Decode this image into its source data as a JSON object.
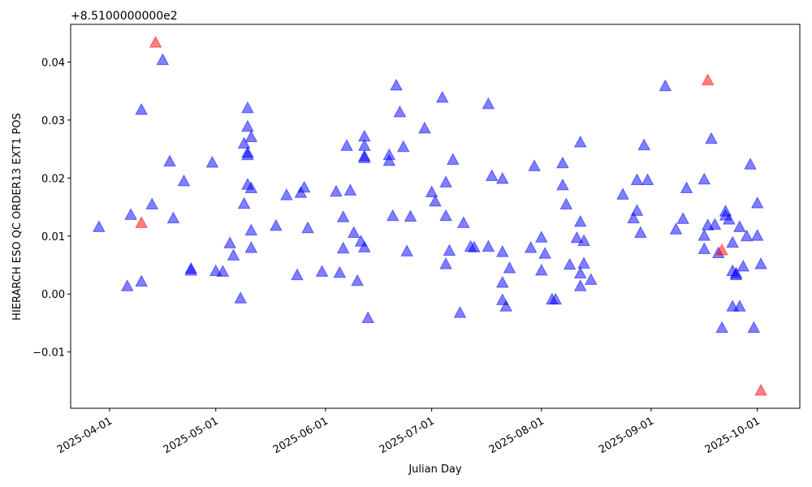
{
  "chart_data": {
    "type": "scatter",
    "xlabel": "Julian Day",
    "ylabel": "HIERARCH ESO QC ORDER13 EXT1 POS",
    "offset_label": "+8.5100000000e2",
    "xlim": [
      "2025-03-21",
      "2025-10-13"
    ],
    "ylim": [
      -0.0197,
      0.0465
    ],
    "x_ticks": [
      "2025-04-01",
      "2025-05-01",
      "2025-06-01",
      "2025-07-01",
      "2025-08-01",
      "2025-09-01",
      "2025-10-01"
    ],
    "y_ticks": [
      -0.01,
      0.0,
      0.01,
      0.02,
      0.03,
      0.04
    ],
    "y_tick_labels": [
      "−0.01",
      "0.00",
      "0.01",
      "0.02",
      "0.03",
      "0.04"
    ],
    "marker": "triangle-up",
    "colors": {
      "normal": "#0000ff",
      "outlier": "#ff0000"
    },
    "series": [
      {
        "color": "#0000ff",
        "points": [
          [
            "2025-03-29",
            0.0116
          ],
          [
            "2025-04-06",
            0.0014
          ],
          [
            "2025-04-07",
            0.0137
          ],
          [
            "2025-04-10",
            0.0318
          ],
          [
            "2025-04-10",
            0.0022
          ],
          [
            "2025-04-13",
            0.0155
          ],
          [
            "2025-04-16",
            0.0404
          ],
          [
            "2025-04-18",
            0.0229
          ],
          [
            "2025-04-19",
            0.0131
          ],
          [
            "2025-04-22",
            0.0195
          ],
          [
            "2025-04-24",
            0.0041
          ],
          [
            "2025-04-24",
            0.0044
          ],
          [
            "2025-04-30",
            0.0227
          ],
          [
            "2025-05-01",
            0.004
          ],
          [
            "2025-05-03",
            0.0039
          ],
          [
            "2025-05-05",
            0.0088
          ],
          [
            "2025-05-06",
            0.0067
          ],
          [
            "2025-05-08",
            -0.0007
          ],
          [
            "2025-05-09",
            0.0156
          ],
          [
            "2025-05-09",
            0.026
          ],
          [
            "2025-05-10",
            0.0321
          ],
          [
            "2025-05-10",
            0.0289
          ],
          [
            "2025-05-10",
            0.024
          ],
          [
            "2025-05-10",
            0.0244
          ],
          [
            "2025-05-10",
            0.0189
          ],
          [
            "2025-05-11",
            0.0271
          ],
          [
            "2025-05-11",
            0.0183
          ],
          [
            "2025-05-11",
            0.011
          ],
          [
            "2025-05-11",
            0.008
          ],
          [
            "2025-05-18",
            0.0118
          ],
          [
            "2025-05-21",
            0.0171
          ],
          [
            "2025-05-24",
            0.0033
          ],
          [
            "2025-05-25",
            0.0175
          ],
          [
            "2025-05-26",
            0.0184
          ],
          [
            "2025-05-27",
            0.0114
          ],
          [
            "2025-05-31",
            0.0039
          ],
          [
            "2025-06-04",
            0.0177
          ],
          [
            "2025-06-05",
            0.0037
          ],
          [
            "2025-06-06",
            0.0079
          ],
          [
            "2025-06-06",
            0.0133
          ],
          [
            "2025-06-07",
            0.0256
          ],
          [
            "2025-06-08",
            0.0179
          ],
          [
            "2025-06-09",
            0.0106
          ],
          [
            "2025-06-10",
            0.0023
          ],
          [
            "2025-06-11",
            0.0091
          ],
          [
            "2025-06-12",
            0.0272
          ],
          [
            "2025-06-12",
            0.0256
          ],
          [
            "2025-06-12",
            0.0238
          ],
          [
            "2025-06-12",
            0.0235
          ],
          [
            "2025-06-12",
            0.0081
          ],
          [
            "2025-06-13",
            -0.0041
          ],
          [
            "2025-06-19",
            0.024
          ],
          [
            "2025-06-19",
            0.023
          ],
          [
            "2025-06-20",
            0.0135
          ],
          [
            "2025-06-21",
            0.036
          ],
          [
            "2025-06-22",
            0.0314
          ],
          [
            "2025-06-23",
            0.0254
          ],
          [
            "2025-06-24",
            0.0074
          ],
          [
            "2025-06-25",
            0.0134
          ],
          [
            "2025-06-29",
            0.0286
          ],
          [
            "2025-07-01",
            0.0176
          ],
          [
            "2025-07-02",
            0.016
          ],
          [
            "2025-07-04",
            0.0339
          ],
          [
            "2025-07-05",
            0.0193
          ],
          [
            "2025-07-05",
            0.0135
          ],
          [
            "2025-07-05",
            0.0052
          ],
          [
            "2025-07-06",
            0.0075
          ],
          [
            "2025-07-07",
            0.0232
          ],
          [
            "2025-07-09",
            -0.0032
          ],
          [
            "2025-07-10",
            0.0123
          ],
          [
            "2025-07-12",
            0.0082
          ],
          [
            "2025-07-13",
            0.0081
          ],
          [
            "2025-07-17",
            0.0328
          ],
          [
            "2025-07-17",
            0.0082
          ],
          [
            "2025-07-18",
            0.0204
          ],
          [
            "2025-07-21",
            0.0199
          ],
          [
            "2025-07-21",
            0.0073
          ],
          [
            "2025-07-21",
            0.002
          ],
          [
            "2025-07-21",
            -0.001
          ],
          [
            "2025-07-22",
            -0.0021
          ],
          [
            "2025-07-23",
            0.0045
          ],
          [
            "2025-07-29",
            0.008
          ],
          [
            "2025-07-30",
            0.0221
          ],
          [
            "2025-08-01",
            0.0098
          ],
          [
            "2025-08-01",
            0.0041
          ],
          [
            "2025-08-02",
            0.007
          ],
          [
            "2025-08-04",
            -0.0009
          ],
          [
            "2025-08-05",
            -0.0009
          ],
          [
            "2025-08-07",
            0.0226
          ],
          [
            "2025-08-07",
            0.0188
          ],
          [
            "2025-08-08",
            0.0155
          ],
          [
            "2025-08-09",
            0.0051
          ],
          [
            "2025-08-11",
            0.0097
          ],
          [
            "2025-08-12",
            0.0262
          ],
          [
            "2025-08-12",
            0.0125
          ],
          [
            "2025-08-12",
            0.0036
          ],
          [
            "2025-08-12",
            0.0014
          ],
          [
            "2025-08-13",
            0.0053
          ],
          [
            "2025-08-13",
            0.0092
          ],
          [
            "2025-08-15",
            0.0025
          ],
          [
            "2025-08-24",
            0.0172
          ],
          [
            "2025-08-27",
            0.0131
          ],
          [
            "2025-08-28",
            0.0197
          ],
          [
            "2025-08-28",
            0.0144
          ],
          [
            "2025-08-29",
            0.0106
          ],
          [
            "2025-08-30",
            0.0257
          ],
          [
            "2025-08-31",
            0.0197
          ],
          [
            "2025-09-05",
            0.0359
          ],
          [
            "2025-09-08",
            0.0112
          ],
          [
            "2025-09-10",
            0.013
          ],
          [
            "2025-09-11",
            0.0183
          ],
          [
            "2025-09-16",
            0.0198
          ],
          [
            "2025-09-16",
            0.0101
          ],
          [
            "2025-09-16",
            0.0078
          ],
          [
            "2025-09-17",
            0.0119
          ],
          [
            "2025-09-18",
            0.0268
          ],
          [
            "2025-09-19",
            0.012
          ],
          [
            "2025-09-20",
            0.0071
          ],
          [
            "2025-09-21",
            -0.0058
          ],
          [
            "2025-09-22",
            0.0136
          ],
          [
            "2025-09-22",
            0.0143
          ],
          [
            "2025-09-23",
            0.0129
          ],
          [
            "2025-09-24",
            0.0089
          ],
          [
            "2025-09-24",
            0.004
          ],
          [
            "2025-09-24",
            -0.0021
          ],
          [
            "2025-09-25",
            0.0036
          ],
          [
            "2025-09-25",
            0.0033
          ],
          [
            "2025-09-26",
            0.0116
          ],
          [
            "2025-09-26",
            -0.0021
          ],
          [
            "2025-09-27",
            0.0048
          ],
          [
            "2025-09-28",
            0.01
          ],
          [
            "2025-09-29",
            0.0224
          ],
          [
            "2025-09-30",
            -0.0058
          ],
          [
            "2025-10-01",
            0.0157
          ],
          [
            "2025-10-01",
            0.0101
          ],
          [
            "2025-10-02",
            0.0052
          ]
        ]
      },
      {
        "color": "#ff0000",
        "points": [
          [
            "2025-04-10",
            0.0123
          ],
          [
            "2025-04-14",
            0.0434
          ],
          [
            "2025-09-17",
            0.0369
          ],
          [
            "2025-09-21",
            0.0076
          ],
          [
            "2025-10-02",
            -0.0166
          ]
        ]
      }
    ]
  }
}
